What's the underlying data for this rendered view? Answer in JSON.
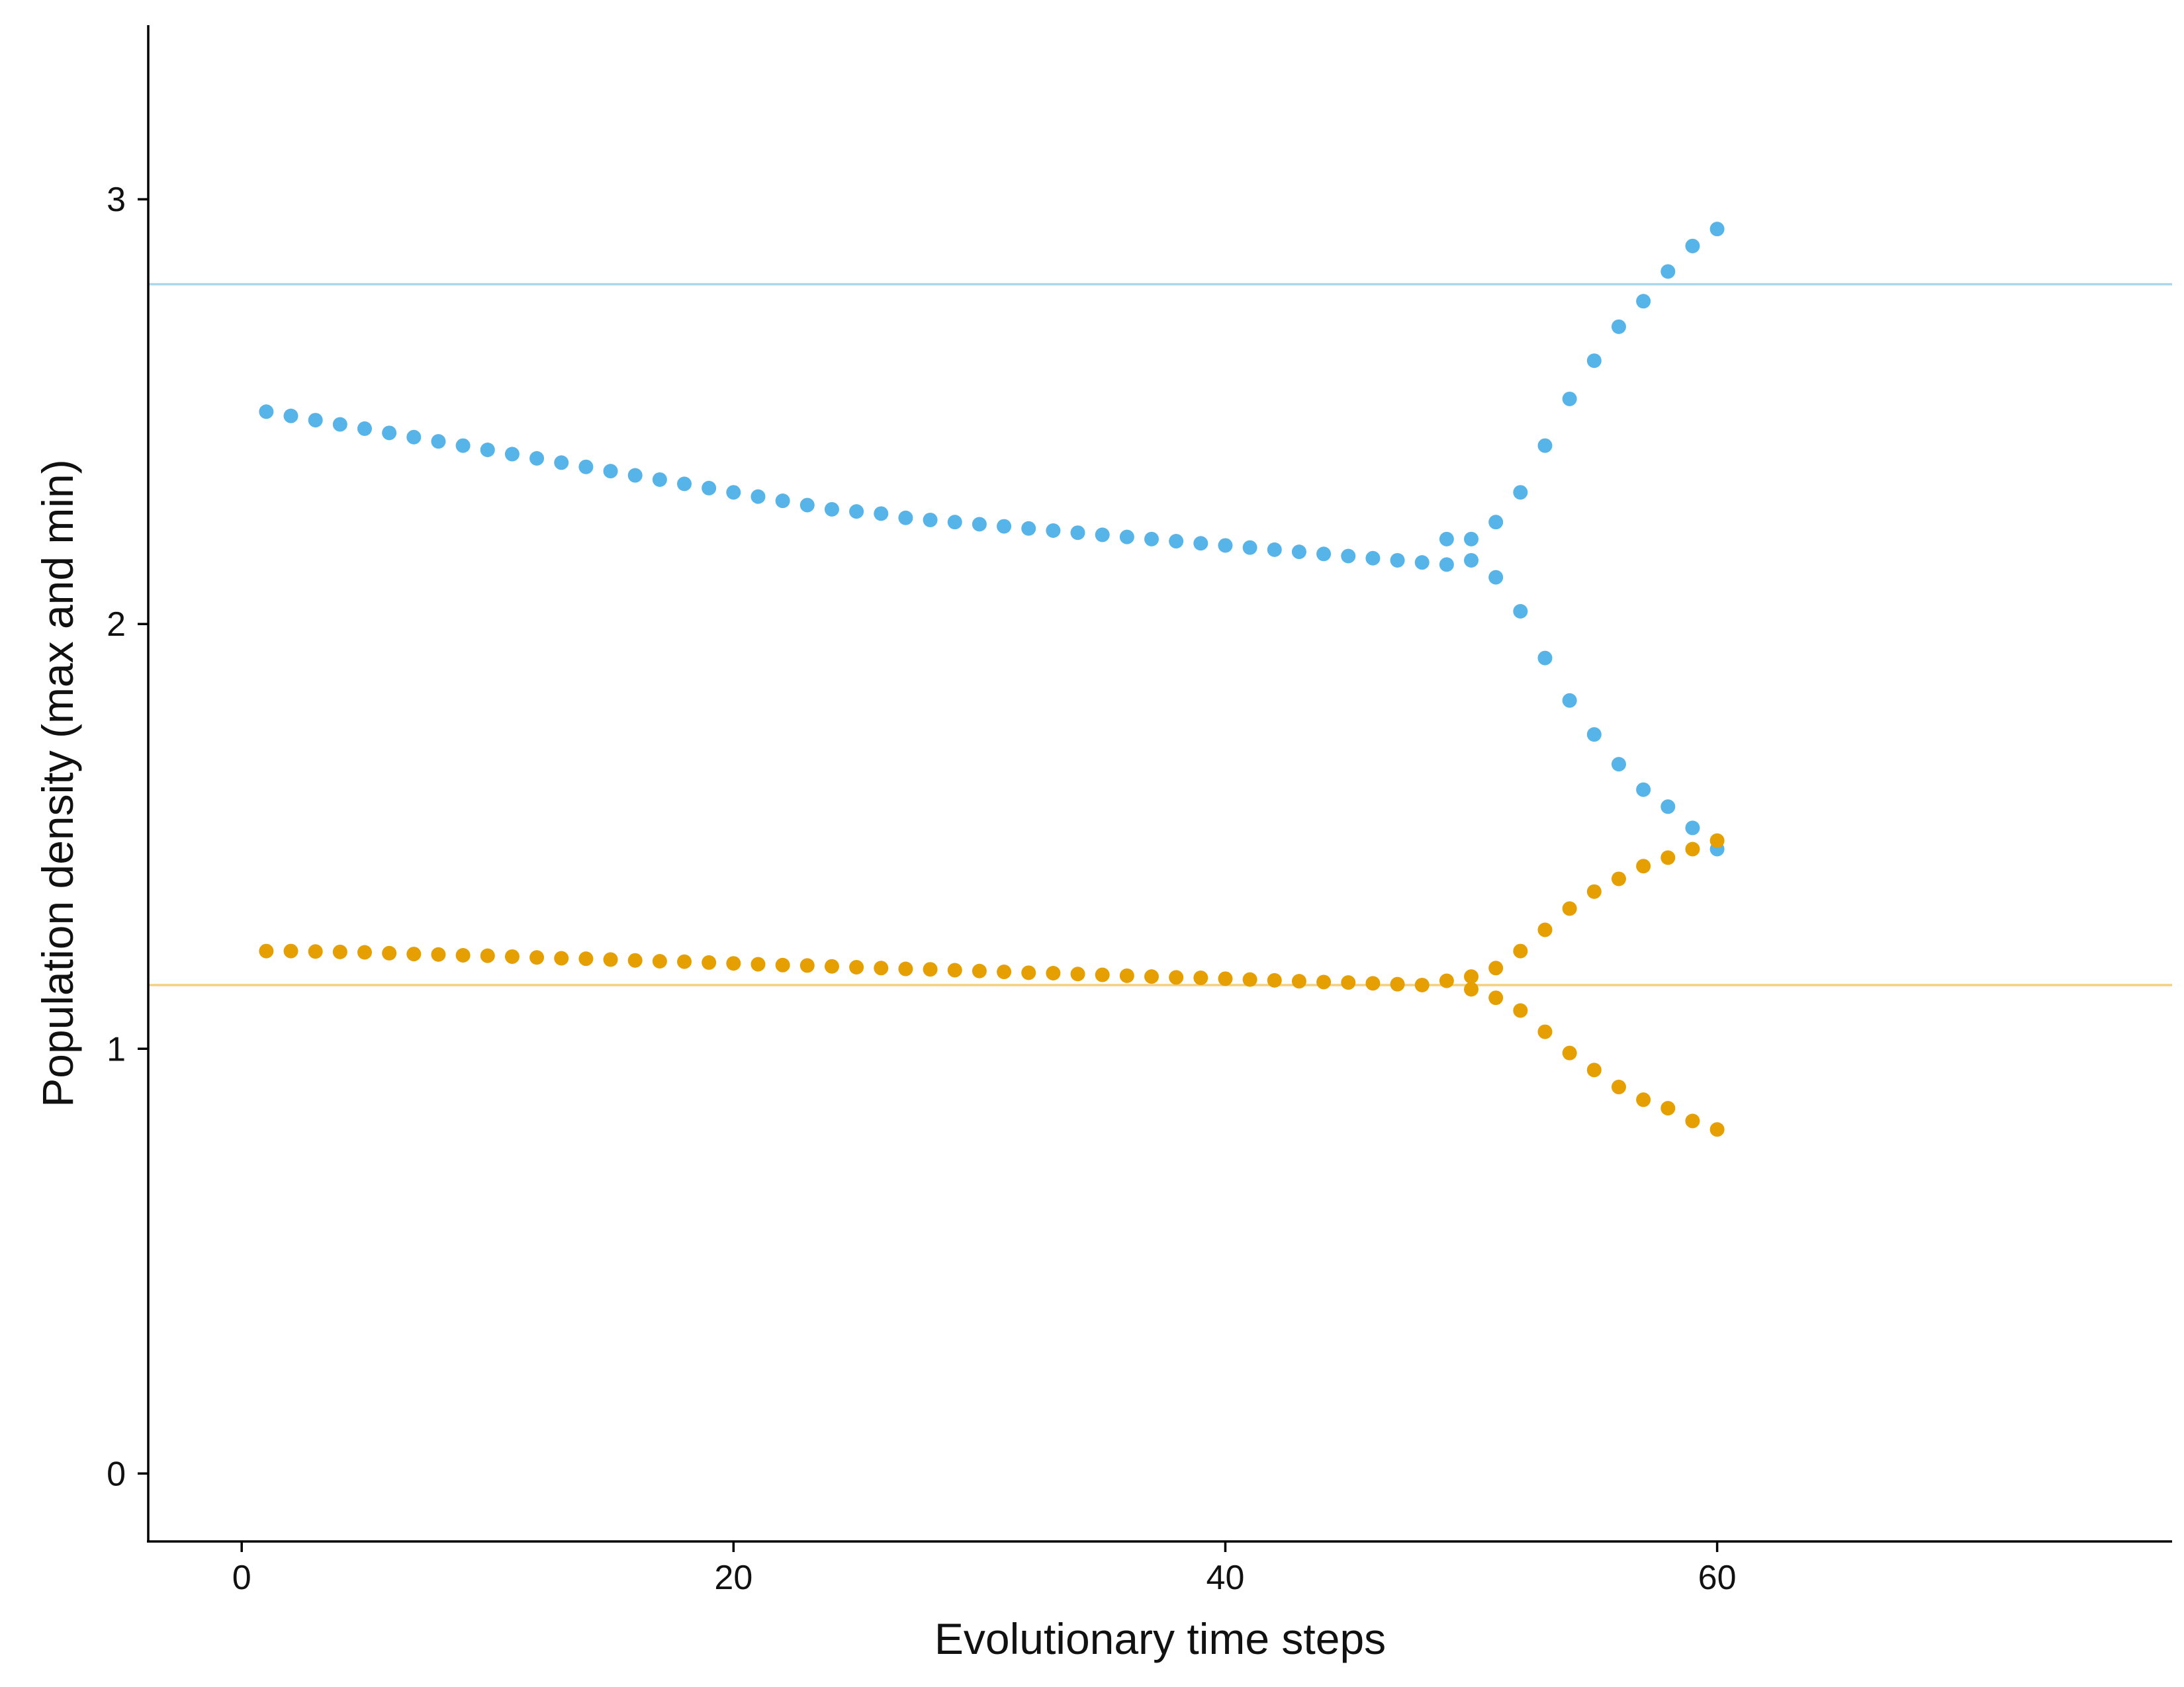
{
  "chart_data": {
    "type": "scatter",
    "title": "",
    "xlabel": "Evolutionary time steps",
    "ylabel": "Population density (max and min)",
    "xlim": [
      -3.8,
      78.5
    ],
    "ylim": [
      -0.16,
      3.41
    ],
    "x_ticks": [
      0,
      20,
      40,
      60
    ],
    "y_ticks": [
      0,
      1,
      2,
      3
    ],
    "grid": false,
    "legend": "none",
    "reference_lines": [
      {
        "y": 2.8,
        "color": "#a8d8f0"
      },
      {
        "y": 1.15,
        "color": "#f5cf7e"
      }
    ],
    "series": [
      {
        "color": "#56b4e9",
        "x": [
          1,
          2,
          3,
          4,
          5,
          6,
          7,
          8,
          9,
          10,
          11,
          12,
          13,
          14,
          15,
          16,
          17,
          18,
          19,
          20,
          21,
          22,
          23,
          24,
          25,
          26,
          27,
          28,
          29,
          30,
          31,
          32,
          33,
          34,
          35,
          36,
          37,
          38,
          39,
          40,
          41,
          42,
          43,
          44,
          45,
          46,
          47,
          48,
          49,
          50,
          51,
          52,
          53,
          54,
          55,
          56,
          57,
          58,
          59,
          60
        ],
        "y": [
          2.5,
          2.49,
          2.48,
          2.47,
          2.46,
          2.45,
          2.44,
          2.43,
          2.42,
          2.41,
          2.4,
          2.39,
          2.38,
          2.37,
          2.36,
          2.35,
          2.34,
          2.33,
          2.32,
          2.31,
          2.3,
          2.29,
          2.28,
          2.27,
          2.265,
          2.26,
          2.25,
          2.245,
          2.24,
          2.235,
          2.23,
          2.225,
          2.22,
          2.215,
          2.21,
          2.205,
          2.2,
          2.195,
          2.19,
          2.185,
          2.18,
          2.175,
          2.17,
          2.165,
          2.16,
          2.155,
          2.15,
          2.145,
          2.14,
          2.15,
          2.11,
          2.03,
          1.92,
          1.82,
          1.74,
          1.67,
          1.61,
          1.57,
          1.52,
          1.47
        ]
      },
      {
        "color": "#56b4e9",
        "x": [
          49,
          50,
          51,
          52,
          53,
          54,
          55,
          56,
          57,
          58,
          59,
          60
        ],
        "y": [
          2.2,
          2.2,
          2.24,
          2.31,
          2.42,
          2.53,
          2.62,
          2.7,
          2.76,
          2.83,
          2.89,
          2.93
        ]
      },
      {
        "color": "#e69f00",
        "x": [
          1,
          2,
          3,
          4,
          5,
          6,
          7,
          8,
          9,
          10,
          11,
          12,
          13,
          14,
          15,
          16,
          17,
          18,
          19,
          20,
          21,
          22,
          23,
          24,
          25,
          26,
          27,
          28,
          29,
          30,
          31,
          32,
          33,
          34,
          35,
          36,
          37,
          38,
          39,
          40,
          41,
          42,
          43,
          44,
          45,
          46,
          47,
          48,
          49,
          50,
          51,
          52,
          53,
          54,
          55,
          56,
          57,
          58,
          59,
          60
        ],
        "y": [
          1.23,
          1.23,
          1.229,
          1.228,
          1.227,
          1.225,
          1.223,
          1.222,
          1.22,
          1.219,
          1.217,
          1.215,
          1.213,
          1.212,
          1.21,
          1.208,
          1.206,
          1.205,
          1.203,
          1.201,
          1.199,
          1.197,
          1.196,
          1.194,
          1.192,
          1.19,
          1.188,
          1.187,
          1.185,
          1.183,
          1.181,
          1.179,
          1.178,
          1.176,
          1.174,
          1.172,
          1.17,
          1.168,
          1.167,
          1.165,
          1.163,
          1.161,
          1.159,
          1.157,
          1.156,
          1.154,
          1.152,
          1.15,
          1.16,
          1.14,
          1.12,
          1.09,
          1.04,
          0.99,
          0.95,
          0.91,
          0.88,
          0.86,
          0.83,
          0.81
        ]
      },
      {
        "color": "#e69f00",
        "x": [
          50,
          51,
          52,
          53,
          54,
          55,
          56,
          57,
          58,
          59,
          60
        ],
        "y": [
          1.17,
          1.19,
          1.23,
          1.28,
          1.33,
          1.37,
          1.4,
          1.43,
          1.45,
          1.47,
          1.49
        ]
      }
    ]
  }
}
